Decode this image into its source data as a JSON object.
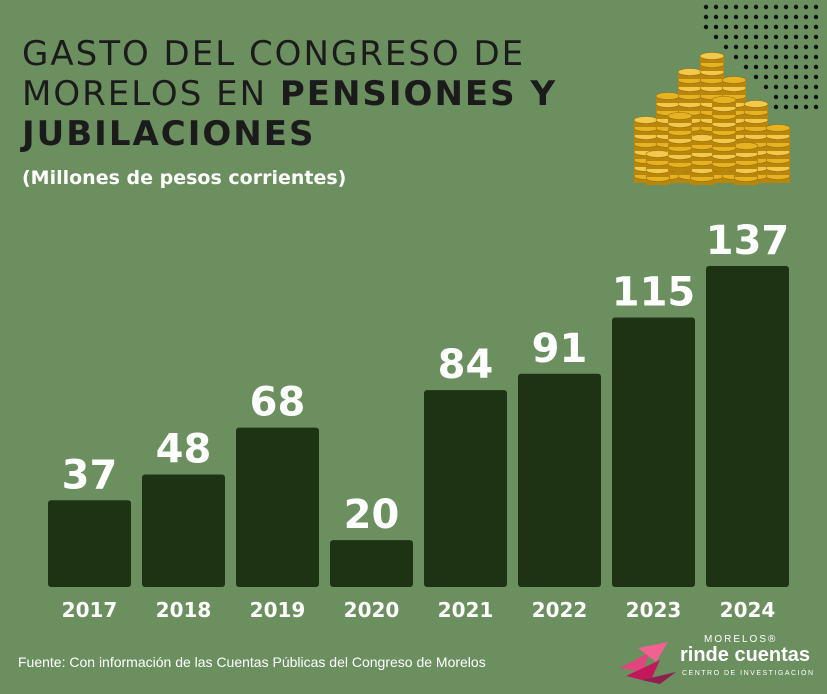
{
  "header": {
    "title_part1": "GASTO DEL CONGRESO DE MORELOS EN ",
    "title_part2": "PENSIONES Y JUBILACIONES",
    "subtitle": "(Millones de pesos corrientes)"
  },
  "chart_data": {
    "type": "bar",
    "title": "GASTO DEL CONGRESO DE MORELOS EN PENSIONES Y JUBILACIONES",
    "subtitle": "(Millones de pesos corrientes)",
    "categories": [
      "2017",
      "2018",
      "2019",
      "2020",
      "2021",
      "2022",
      "2023",
      "2024"
    ],
    "values": [
      37,
      48,
      68,
      20,
      84,
      91,
      115,
      137
    ],
    "data_labels": [
      "37",
      "48",
      "68",
      "20",
      "84",
      "91",
      "115",
      "137"
    ],
    "bar_heights_note_free": true,
    "xlabel": "",
    "ylabel": "",
    "grid": false,
    "legend": "none",
    "colors": {
      "bar": "#1e3313",
      "background": "#6b8f5f",
      "label": "#ffffff"
    }
  },
  "footer": {
    "source": "Fuente: Con información de las Cuentas Públicas del Congreso de Morelos"
  },
  "logo": {
    "top": "MORELOS®",
    "main": "rinde cuentas",
    "sub": "CENTRO DE INVESTIGACIÓN"
  },
  "decor": {
    "coins_icon": "coin-stacks-icon",
    "dots_icon": "dot-grid-icon"
  }
}
